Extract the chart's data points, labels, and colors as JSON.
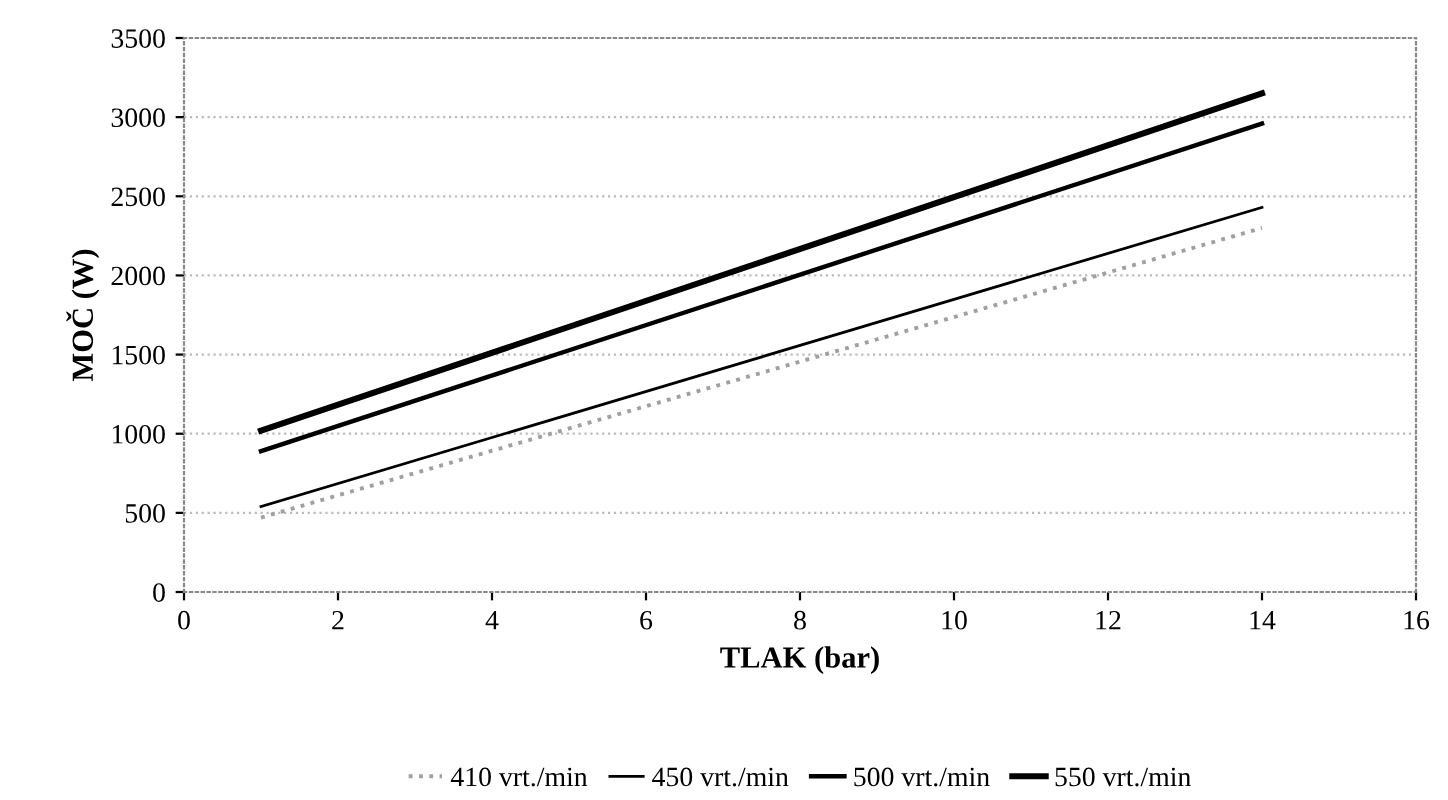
{
  "chart_data": {
    "type": "line",
    "xlabel": "TLAK (bar)",
    "ylabel": "MOČ (W)",
    "xlim": [
      0,
      16
    ],
    "xticks": [
      0,
      2,
      4,
      6,
      8,
      10,
      12,
      14,
      16
    ],
    "ylim": [
      0,
      3500
    ],
    "yticks": [
      0,
      500,
      1000,
      1500,
      2000,
      2500,
      3000,
      3500
    ],
    "grid": "y",
    "legend": "bottom",
    "marker": "none",
    "x": [
      1,
      14
    ],
    "series": [
      {
        "name": "410 vrt./min",
        "color": "#a0a0a0",
        "values": [
          470,
          2300
        ],
        "line_style": "dotted"
      },
      {
        "name": "450 vrt./min",
        "color": "#000000",
        "values": [
          540,
          2430
        ],
        "line_style": "solid"
      },
      {
        "name": "500 vrt./min",
        "color": "#000000",
        "values": [
          890,
          2960
        ],
        "line_style": "solid"
      },
      {
        "name": "550 vrt./min",
        "color": "#000000",
        "values": [
          1020,
          3150
        ],
        "line_style": "solid"
      }
    ]
  }
}
